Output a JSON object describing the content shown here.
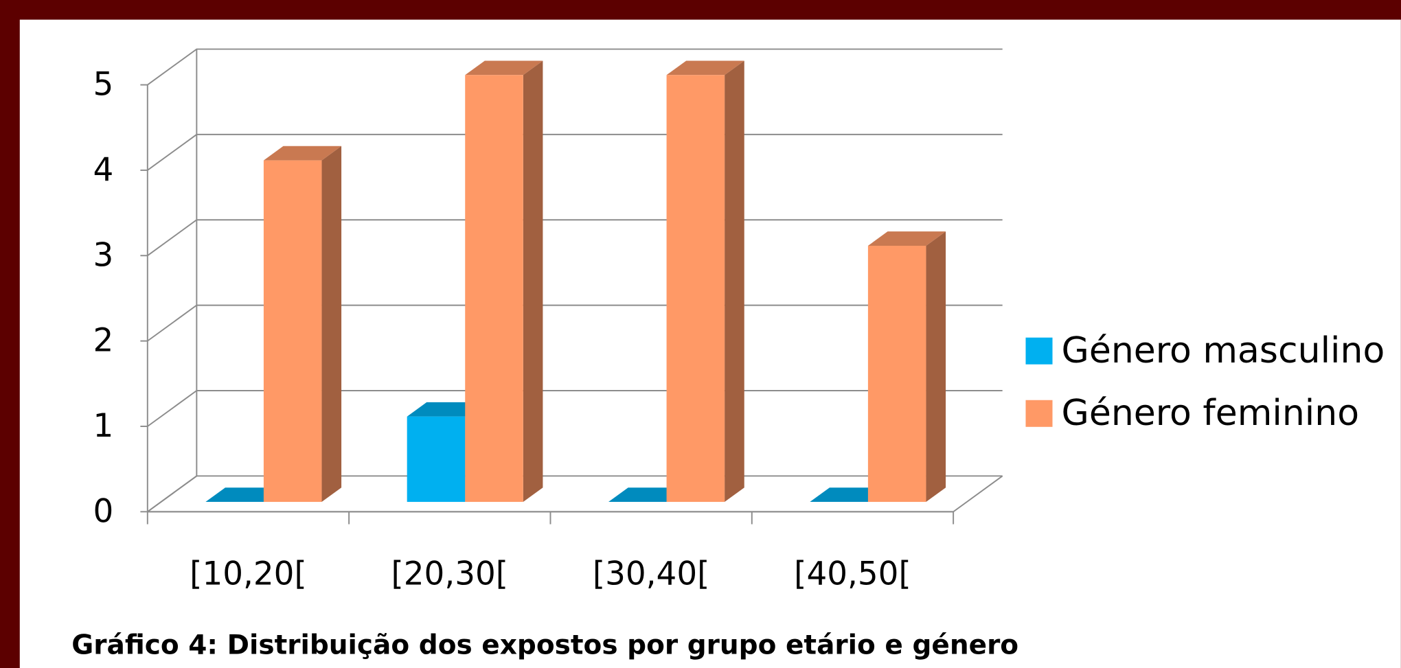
{
  "chart_data": {
    "type": "bar3d",
    "caption": "Gráfico 4: Distribuição dos expostos por grupo etário e género",
    "categories": [
      "[10,20[",
      "[20,30[",
      "[30,40[",
      "[40,50["
    ],
    "series": [
      {
        "name": "Género masculino",
        "color": "#00b0f0",
        "values": [
          0,
          1,
          0,
          0
        ]
      },
      {
        "name": "Género feminino",
        "color": "#ff9966",
        "values": [
          4,
          5,
          5,
          3
        ]
      }
    ],
    "ylim": [
      0,
      5
    ],
    "yticks": [
      0,
      1,
      2,
      3,
      4,
      5
    ],
    "grid": true,
    "legend": "right"
  }
}
